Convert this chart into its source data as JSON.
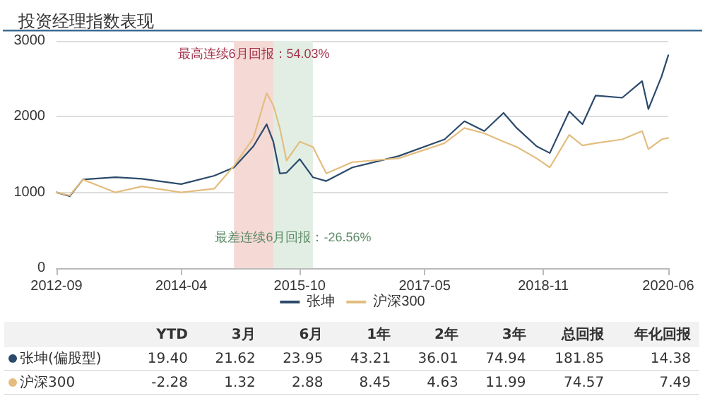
{
  "chart_data": [
    {
      "type": "line",
      "title": "投资经理指数表现",
      "xlim": [
        "2012-09",
        "2020-06"
      ],
      "xticks": [
        "2012-09",
        "2014-04",
        "2015-10",
        "2017-05",
        "2018-11",
        "2020-06"
      ],
      "ylim": [
        0,
        3000
      ],
      "yticks": [
        0,
        1000,
        2000,
        3000
      ],
      "grid": "y",
      "legend": "bottom",
      "marker": "none",
      "line_style": "solid",
      "bands": [
        {
          "axis": "x",
          "from": "2014-12",
          "to": "2015-06",
          "label": "最高连续6月回报：54.03%",
          "color": "#f5d9d5"
        },
        {
          "axis": "x",
          "from": "2015-06",
          "to": "2015-12",
          "label": "最差连续6月回报：-26.56%",
          "color": "#e2eee4"
        }
      ],
      "series": [
        {
          "name": "张坤",
          "color": "#2b4a6b",
          "x": [
            "2012-09",
            "2012-11",
            "2013-01",
            "2013-06",
            "2013-10",
            "2014-04",
            "2014-09",
            "2014-12",
            "2015-03",
            "2015-05",
            "2015-06",
            "2015-07",
            "2015-08",
            "2015-10",
            "2015-12",
            "2016-02",
            "2016-06",
            "2017-01",
            "2017-08",
            "2017-11",
            "2018-02",
            "2018-05",
            "2018-07",
            "2018-10",
            "2018-12",
            "2019-03",
            "2019-05",
            "2019-07",
            "2019-11",
            "2020-02",
            "2020-03",
            "2020-05",
            "2020-06"
          ],
          "values": [
            1000,
            950,
            1170,
            1200,
            1180,
            1110,
            1220,
            1330,
            1610,
            1900,
            1670,
            1250,
            1260,
            1440,
            1200,
            1150,
            1330,
            1480,
            1700,
            1940,
            1810,
            2050,
            1850,
            1610,
            1520,
            2070,
            1900,
            2280,
            2250,
            2470,
            2100,
            2530,
            2810
          ]
        },
        {
          "name": "沪深300",
          "color": "#e3bd7f",
          "x": [
            "2012-09",
            "2012-11",
            "2013-01",
            "2013-06",
            "2013-10",
            "2014-04",
            "2014-09",
            "2014-12",
            "2015-03",
            "2015-05",
            "2015-06",
            "2015-07",
            "2015-08",
            "2015-10",
            "2015-12",
            "2016-02",
            "2016-06",
            "2017-01",
            "2017-08",
            "2017-11",
            "2018-02",
            "2018-05",
            "2018-07",
            "2018-10",
            "2018-12",
            "2019-03",
            "2019-05",
            "2019-07",
            "2019-11",
            "2020-02",
            "2020-03",
            "2020-05",
            "2020-06"
          ],
          "values": [
            1000,
            960,
            1170,
            1000,
            1080,
            1000,
            1050,
            1350,
            1720,
            2310,
            2150,
            1850,
            1420,
            1670,
            1600,
            1250,
            1400,
            1450,
            1650,
            1850,
            1780,
            1670,
            1600,
            1450,
            1330,
            1760,
            1620,
            1650,
            1700,
            1810,
            1570,
            1700,
            1720
          ]
        }
      ]
    },
    {
      "type": "other",
      "categories": [
        "YTD",
        "3月",
        "6月",
        "1年",
        "2年",
        "3年",
        "总回报",
        "年化回报"
      ],
      "series": [
        {
          "name": "张坤(偏股型)",
          "color": "#2b4a6b",
          "values": [
            19.4,
            21.62,
            23.95,
            43.21,
            36.01,
            74.94,
            181.85,
            14.38
          ],
          "value_labels": [
            "19.40",
            "21.62",
            "23.95",
            "43.21",
            "36.01",
            "74.94",
            "181.85",
            "14.38"
          ]
        },
        {
          "name": "沪深300",
          "color": "#e3bd7f",
          "values": [
            -2.28,
            1.32,
            2.88,
            8.45,
            4.63,
            11.99,
            74.57,
            7.49
          ],
          "value_labels": [
            "-2.28",
            "1.32",
            "2.88",
            "8.45",
            "4.63",
            "11.99",
            "74.57",
            "7.49"
          ]
        }
      ]
    }
  ]
}
